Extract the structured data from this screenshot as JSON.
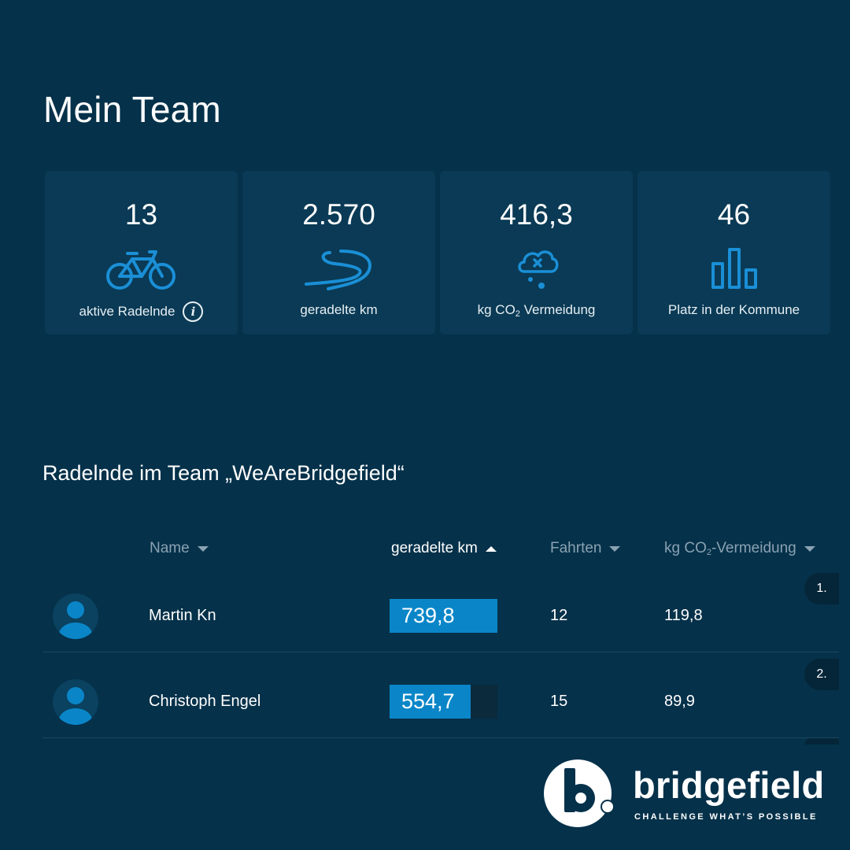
{
  "page": {
    "title": "Mein Team"
  },
  "stats": [
    {
      "value": "13",
      "label": "aktive Radelnde",
      "icon": "bicycle-icon",
      "has_info": true
    },
    {
      "value": "2.570",
      "label": "geradelte km",
      "icon": "road-icon"
    },
    {
      "value": "416,3",
      "label_prefix": "kg CO",
      "label_sub": "2",
      "label_suffix": " Vermeidung",
      "icon": "cloud-co2-icon"
    },
    {
      "value": "46",
      "label": "Platz in der Kommune",
      "icon": "ranking-bars-icon"
    }
  ],
  "info_glyph": "i",
  "team_section": {
    "title": "Radelnde im Team „WeAreBridgefield“"
  },
  "table": {
    "headers": {
      "name": "Name",
      "km": "geradelte km",
      "trips": "Fahrten",
      "co2_prefix": "kg CO",
      "co2_sub": "2",
      "co2_suffix": "-Vermeidung"
    },
    "sorted_by": "km",
    "sort_direction": "ascending-indicator",
    "rows": [
      {
        "rank": "1.",
        "name": "Martin Kn",
        "km": "739,8",
        "km_fraction": 1.0,
        "trips": "12",
        "co2": "119,8"
      },
      {
        "rank": "2.",
        "name": "Christoph Engel",
        "km": "554,7",
        "km_fraction": 0.75,
        "trips": "15",
        "co2": "89,9"
      }
    ]
  },
  "brand": {
    "name": "bridgefield",
    "tagline": "CHALLENGE WHAT’S POSSIBLE"
  },
  "colors": {
    "background": "#05314a",
    "card": "#0a3a55",
    "accent": "#0a86c8",
    "icon": "#1a8fd6",
    "muted_text": "#8aa2b2"
  }
}
